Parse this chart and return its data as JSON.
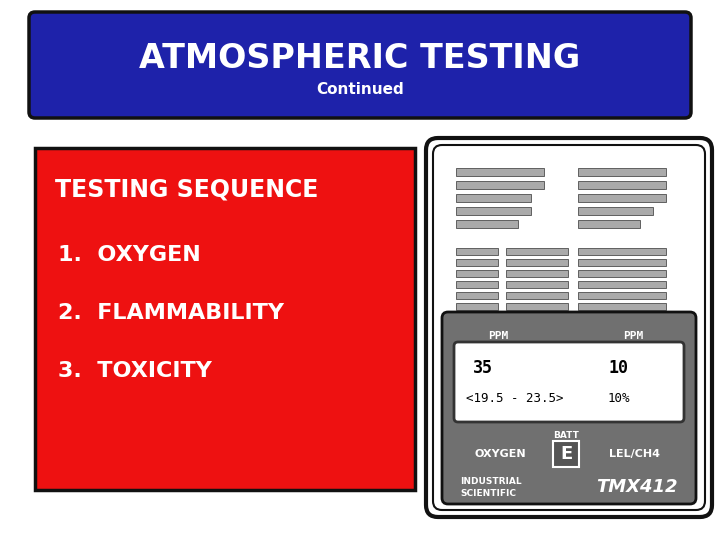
{
  "bg_color": "#ffffff",
  "title_box_color": "#1e22aa",
  "title_text": "ATMOSPHERIC TESTING",
  "subtitle_text": "Continued",
  "title_text_color": "#ffffff",
  "red_box_color": "#ee1111",
  "red_box_text_color": "#ffffff",
  "testing_sequence_title": "TESTING SEQUENCE",
  "testing_items": [
    "1.  OXYGEN",
    "2.  FLAMMABILITY",
    "3.  TOXICITY"
  ],
  "device_bg": "#707070",
  "device_outline": "#111111",
  "device_screen_bg": "#ffffff",
  "grill_color": "#aaaaaa",
  "ppm_label_left": "PPM",
  "ppm_label_right": "PPM",
  "screen_val1": "35",
  "screen_val2": "10",
  "screen_range": "<19.5 - 23.5>",
  "screen_pct": "10%",
  "batt_label": "BATT",
  "oxygen_label": "OXYGEN",
  "lel_label": "LEL/CH4",
  "industrial_line1": "INDUSTRIAL",
  "industrial_line2": "SCIENTIFIC",
  "tmx_label": "TMX412"
}
